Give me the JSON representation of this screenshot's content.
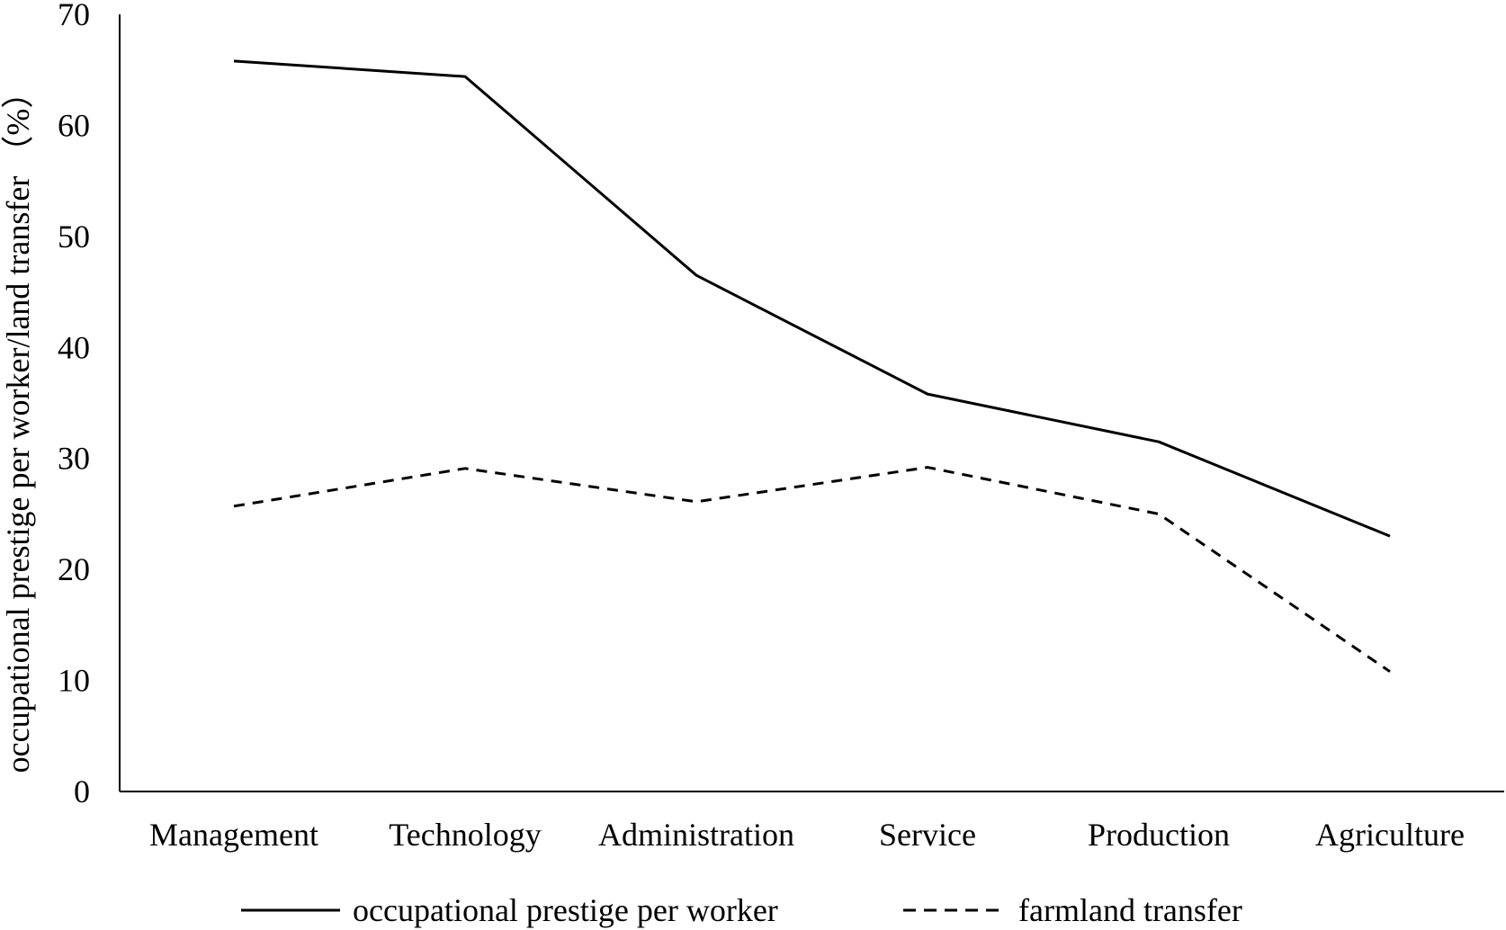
{
  "chart_data": {
    "type": "line",
    "title": "",
    "xlabel": "",
    "ylabel": "occupational prestige per worker/land transfer （%）",
    "categories": [
      "Management",
      "Technology",
      "Administration",
      "Service",
      "Production",
      "Agriculture"
    ],
    "ylim": [
      0,
      70
    ],
    "yticks": [
      "0",
      "10",
      "20",
      "30",
      "40",
      "50",
      "60",
      "70"
    ],
    "grid": false,
    "legend_position": "bottom",
    "series": [
      {
        "name": "occupational prestige per worker",
        "line_style": "solid",
        "color": "#000000",
        "values": [
          65.8,
          64.4,
          46.5,
          35.8,
          31.5,
          23.0
        ]
      },
      {
        "name": "farmland transfer",
        "line_style": "dashed",
        "color": "#000000",
        "values": [
          25.7,
          29.1,
          26.1,
          29.2,
          25.0,
          10.8
        ]
      }
    ]
  }
}
